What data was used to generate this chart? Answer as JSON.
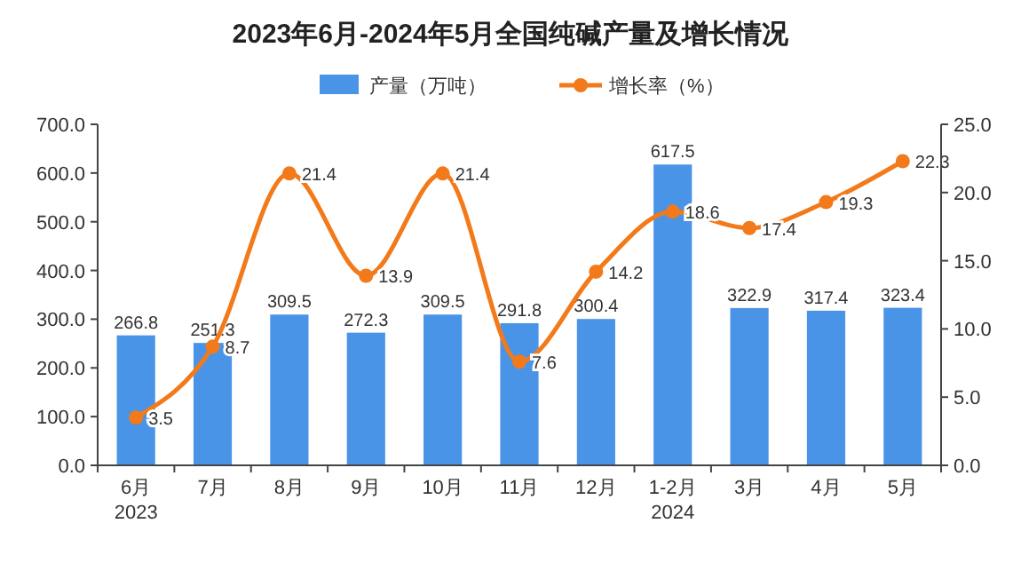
{
  "chart_data": {
    "type": "bar",
    "title": "2023年6月-2024年5月全国纯碱产量及增长情况",
    "categories": [
      "6月\n2023",
      "7月",
      "8月",
      "9月",
      "10月",
      "11月",
      "12月",
      "1-2月\n2024",
      "3月",
      "4月",
      "5月"
    ],
    "series": [
      {
        "name": "产量（万吨）",
        "color": "#4a94e8",
        "values": [
          266.8,
          251.3,
          309.5,
          272.3,
          309.5,
          291.8,
          300.4,
          617.5,
          322.9,
          317.4,
          323.4
        ]
      },
      {
        "name": "增长率（%）",
        "type": "line",
        "axis": "y2",
        "color": "#f27a1a",
        "marker": "circle",
        "values": [
          3.5,
          8.7,
          21.4,
          13.9,
          21.4,
          7.6,
          14.2,
          18.6,
          17.4,
          19.3,
          22.3
        ]
      }
    ],
    "ylim": [
      0,
      700
    ],
    "yticks": [
      {
        "value": 0,
        "label": "0.0"
      },
      {
        "value": 100,
        "label": "100.0"
      },
      {
        "value": 200,
        "label": "200.0"
      },
      {
        "value": 300,
        "label": "300.0"
      },
      {
        "value": 400,
        "label": "400.0"
      },
      {
        "value": 500,
        "label": "500.0"
      },
      {
        "value": 600,
        "label": "600.0"
      },
      {
        "value": 700,
        "label": "700.0"
      }
    ],
    "y2lim": [
      0,
      25
    ],
    "y2ticks": [
      {
        "value": 0,
        "label": "0.0"
      },
      {
        "value": 5,
        "label": "5.0"
      },
      {
        "value": 10,
        "label": "10.0"
      },
      {
        "value": 15,
        "label": "15.0"
      },
      {
        "value": 20,
        "label": "20.0"
      },
      {
        "value": 25,
        "label": "25.0"
      }
    ],
    "data_labels": true,
    "legend": "top",
    "grid": false
  }
}
